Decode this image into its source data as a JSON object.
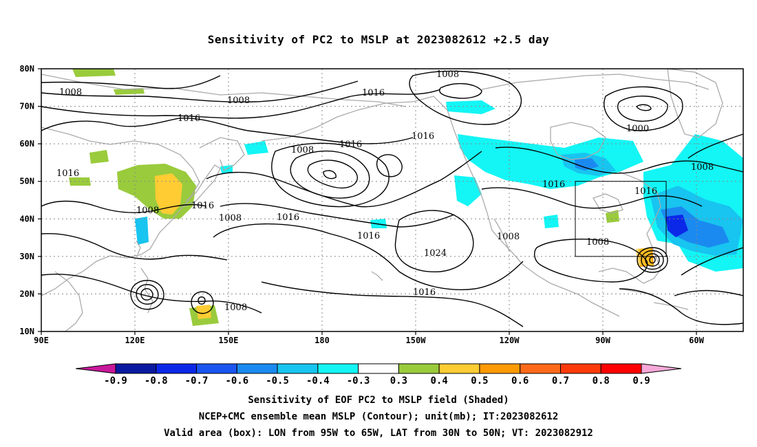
{
  "title": "Sensitivity of PC2 to MSLP at 2023082612 +2.5 day",
  "lat_ticks": [
    "80N",
    "70N",
    "60N",
    "50N",
    "40N",
    "30N",
    "20N",
    "10N"
  ],
  "lon_ticks": [
    "90E",
    "120E",
    "150E",
    "180",
    "150W",
    "120W",
    "90W",
    "60W"
  ],
  "colorbar": {
    "labels": [
      "-0.9",
      "-0.8",
      "-0.7",
      "-0.6",
      "-0.5",
      "-0.4",
      "-0.3",
      "0.3",
      "0.4",
      "0.5",
      "0.6",
      "0.7",
      "0.8",
      "0.9"
    ],
    "colors": [
      "#c8189a",
      "#0a1aa0",
      "#0b28e8",
      "#1a55f0",
      "#1a8af0",
      "#18c4f0",
      "#14f5f5",
      "#ffffff",
      "#9acb3c",
      "#ffcc33",
      "#ff9a00",
      "#ff6a1a",
      "#ff3a0a",
      "#ff0000",
      "#f7a8d8"
    ]
  },
  "contour_labels": [
    "1008",
    "1008",
    "1016",
    "1016",
    "1016",
    "1008",
    "1016",
    "1016",
    "1008",
    "1008",
    "1016",
    "1008",
    "1000",
    "1016",
    "1016",
    "1008",
    "1016",
    "1024",
    "1008",
    "1016",
    "1008",
    "1008"
  ],
  "shading_colors": {
    "cyan": "#14f5f5",
    "lightblue": "#18c4f0",
    "blue": "#1a8af0",
    "darkblue": "#0b28e8",
    "green": "#9acb3c",
    "yellow": "#ffcc33",
    "orange": "#ff9a00"
  },
  "captions": [
    "Sensitivity of EOF PC2 to MSLP field (Shaded)",
    "NCEP+CMC ensemble mean MSLP (Contour); unit(mb); IT:2023082612",
    "Valid area (box): LON from 95W to 65W, LAT from 30N to 50N; VT: 2023082912"
  ]
}
